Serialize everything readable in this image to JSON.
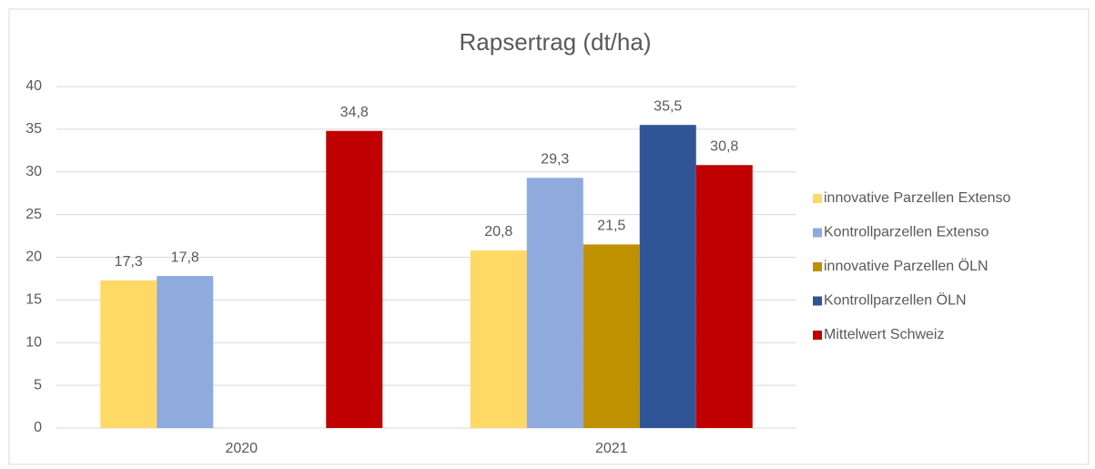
{
  "chart_data": {
    "type": "bar",
    "title": "Rapsertrag (dt/ha)",
    "categories": [
      "2020",
      "2021"
    ],
    "series": [
      {
        "name": "innovative Parzellen Extenso",
        "color": "#ffd966",
        "values": [
          17.3,
          20.8
        ],
        "value_labels": [
          "17,3",
          "20,8"
        ]
      },
      {
        "name": "Kontrollparzellen Extenso",
        "color": "#8faadc",
        "values": [
          17.8,
          29.3
        ],
        "value_labels": [
          "17,8",
          "29,3"
        ]
      },
      {
        "name": "innovative Parzellen ÖLN",
        "color": "#bf9000",
        "values": [
          null,
          21.5
        ],
        "value_labels": [
          null,
          "21,5"
        ]
      },
      {
        "name": "Kontrollparzellen ÖLN",
        "color": "#2f5597",
        "values": [
          null,
          35.5
        ],
        "value_labels": [
          null,
          "35,5"
        ]
      },
      {
        "name": "Mittelwert Schweiz",
        "color": "#c00000",
        "values": [
          34.8,
          30.8
        ],
        "value_labels": [
          "34,8",
          "30,8"
        ]
      }
    ],
    "ylim": [
      0,
      40
    ],
    "yticks": [
      0,
      5,
      10,
      15,
      20,
      25,
      30,
      35,
      40
    ],
    "grid": true,
    "legend": "right"
  }
}
